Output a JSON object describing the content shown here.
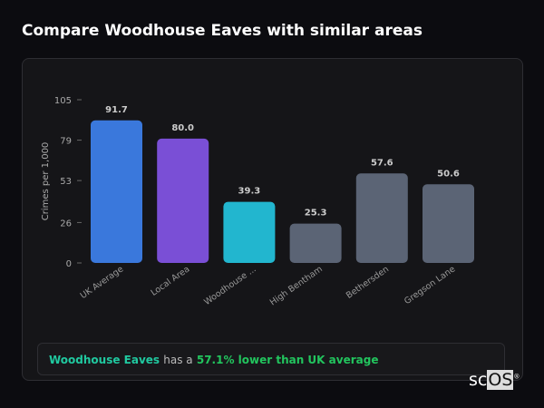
{
  "title": "Compare Woodhouse Eaves with similar areas",
  "summary": {
    "place": "Woodhouse Eaves",
    "middle": "has a",
    "difference": "57.1% lower than UK average"
  },
  "logo": {
    "text_a": "sc",
    "text_b": "OS",
    "mark": "®"
  },
  "chart_data": {
    "type": "bar",
    "categories": [
      "UK Average",
      "Local Area",
      "Woodhouse ...",
      "High Bentham",
      "Bethersden",
      "Gregson Lane"
    ],
    "values": [
      91.7,
      80.0,
      39.3,
      25.3,
      57.6,
      50.6
    ],
    "value_labels": [
      "91.7",
      "80.0",
      "39.3",
      "25.3",
      "57.6",
      "50.6"
    ],
    "colors": [
      "#3a78dc",
      "#7a4fd6",
      "#22b6cf",
      "#5b6475",
      "#5b6475",
      "#5b6475"
    ],
    "ylabel": "Crimes per 1,000",
    "yticks": [
      0,
      26,
      53,
      79,
      105
    ],
    "ylim": [
      0,
      105
    ],
    "grid": false
  }
}
